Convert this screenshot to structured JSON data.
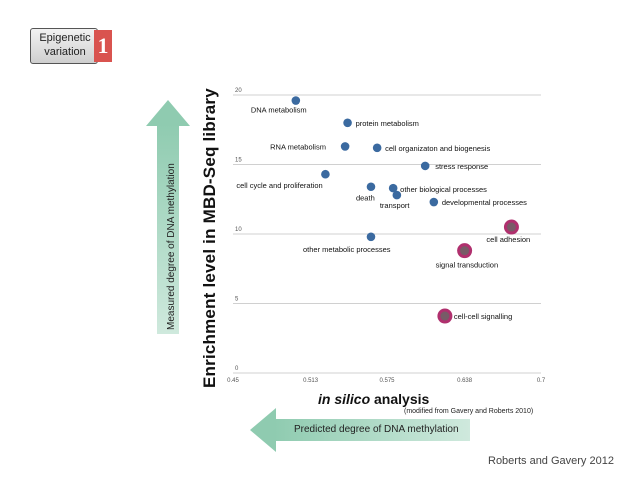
{
  "badge": {
    "line1": "Epigenetic",
    "line2": "variation",
    "number": "1"
  },
  "arrows": {
    "left": "Measured degree of DNA methylation",
    "bottom": "Predicted degree of DNA methylation"
  },
  "citation": "Roberts and Gavery 2012",
  "chart_data": {
    "type": "scatter",
    "title": "",
    "ylabel": "Enrichment level in MBD-Seq library",
    "xlabel_italic": "in silico",
    "xlabel_rest": " analysis",
    "source_note": "(modified from Gavery and Roberts 2010)",
    "xlim": [
      0.45,
      0.7
    ],
    "ylim": [
      0,
      20
    ],
    "x_ticks": [
      "0.45",
      "0.513",
      "0.575",
      "0.638",
      "0.7"
    ],
    "y_ticks": [
      "0",
      "5",
      "10",
      "15",
      "20"
    ],
    "grid": "horizontal",
    "colors": {
      "normal": "#3b6aa0",
      "highlight": "#b0306e",
      "grid": "#d0d0d0"
    },
    "points": [
      {
        "label": "DNA metabolism",
        "x": 0.501,
        "y": 19.6,
        "highlight": false
      },
      {
        "label": "protein metabolism",
        "x": 0.543,
        "y": 18.0,
        "highlight": false
      },
      {
        "label": "RNA metabolism",
        "x": 0.541,
        "y": 16.3,
        "highlight": false
      },
      {
        "label": "cell organizaton and biogenesis",
        "x": 0.567,
        "y": 16.2,
        "highlight": false
      },
      {
        "label": "stress response",
        "x": 0.606,
        "y": 14.9,
        "highlight": false
      },
      {
        "label": "cell cycle and proliferation",
        "x": 0.525,
        "y": 14.3,
        "highlight": false
      },
      {
        "label": "death",
        "x": 0.562,
        "y": 13.4,
        "highlight": false
      },
      {
        "label": "other biological processes",
        "x": 0.58,
        "y": 13.3,
        "highlight": false
      },
      {
        "label": "transport",
        "x": 0.583,
        "y": 12.8,
        "highlight": false
      },
      {
        "label": "developmental processes",
        "x": 0.613,
        "y": 12.3,
        "highlight": false
      },
      {
        "label": "other metabolic processes",
        "x": 0.562,
        "y": 9.8,
        "highlight": false
      },
      {
        "label": "cell adhesion",
        "x": 0.676,
        "y": 10.5,
        "highlight": true
      },
      {
        "label": "signal transduction",
        "x": 0.638,
        "y": 8.8,
        "highlight": true
      },
      {
        "label": "cell-cell signalling",
        "x": 0.622,
        "y": 4.1,
        "highlight": true
      }
    ]
  }
}
